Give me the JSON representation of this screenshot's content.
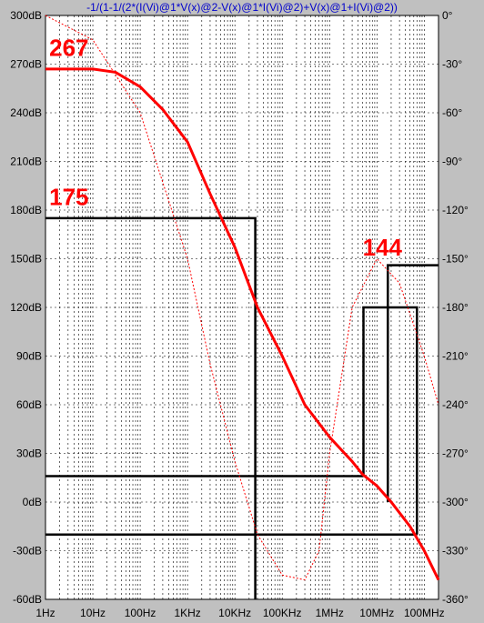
{
  "chart_data": {
    "type": "line",
    "title": "-1/(1-1/(2*(I(Vi)@1*V(x)@2-V(x)@1*I(Vi)@2)+V(x)@1+I(Vi)@2))",
    "x_scale": "log",
    "xlim": [
      1,
      200000000
    ],
    "xticks": [
      "1Hz",
      "10Hz",
      "100Hz",
      "1KHz",
      "10KHz",
      "100KHz",
      "1MHz",
      "10MHz",
      "100MHz"
    ],
    "left_axis": {
      "unit": "dB",
      "ylim": [
        -60,
        300
      ],
      "ticks": [
        "300dB",
        "270dB",
        "240dB",
        "210dB",
        "180dB",
        "150dB",
        "120dB",
        "90dB",
        "60dB",
        "30dB",
        "0dB",
        "-30dB",
        "-60dB"
      ]
    },
    "right_axis": {
      "unit": "deg",
      "ylim": [
        -360,
        0
      ],
      "ticks": [
        "0°",
        "-30°",
        "-60°",
        "-90°",
        "-120°",
        "-150°",
        "-180°",
        "-210°",
        "-240°",
        "-270°",
        "-300°",
        "-330°",
        "-360°"
      ]
    },
    "grid": true,
    "series": [
      {
        "axis": "left",
        "color": "#ff0000",
        "style": "solid",
        "x": [
          1,
          3,
          10,
          30,
          100,
          300,
          1000,
          3000,
          10000,
          30000,
          100000,
          300000,
          1000000,
          3000000,
          5000000,
          10000000,
          20000000,
          50000000,
          100000000,
          200000000
        ],
        "y": [
          267,
          267,
          267,
          265,
          256,
          242,
          222,
          190,
          157,
          120,
          90,
          60,
          40,
          25,
          17,
          10,
          0,
          -15,
          -30,
          -48
        ]
      },
      {
        "axis": "right",
        "color": "#ff0000",
        "style": "dotted",
        "x": [
          1,
          10,
          100,
          1000,
          3000,
          10000,
          30000,
          100000,
          300000,
          600000,
          1000000,
          3000000,
          10000000,
          30000000,
          100000000,
          200000000
        ],
        "y": [
          0,
          -15,
          -60,
          -150,
          -215,
          -275,
          -320,
          -345,
          -348,
          -330,
          -270,
          -180,
          -150,
          -165,
          -210,
          -240
        ]
      }
    ],
    "annotations": [
      {
        "text": "267",
        "x": 1.2,
        "y": 275,
        "axis": "left"
      },
      {
        "text": "175",
        "x": 1.2,
        "y": 183,
        "axis": "left"
      },
      {
        "text": "144",
        "x": 5000000,
        "y": 152,
        "axis": "left"
      }
    ],
    "marker_lines": [
      {
        "points": [
          [
            1,
            175
          ],
          [
            27000,
            175
          ],
          [
            27000,
            -60
          ]
        ]
      },
      {
        "points": [
          [
            1,
            16
          ],
          [
            5200000,
            16
          ]
        ]
      },
      {
        "points": [
          [
            1,
            -20
          ],
          [
            70000000,
            -20
          ]
        ]
      },
      {
        "points": [
          [
            5200000,
            16
          ],
          [
            5200000,
            120
          ],
          [
            70000000,
            120
          ],
          [
            70000000,
            -20
          ]
        ]
      },
      {
        "points": [
          [
            17000000,
            0
          ],
          [
            17000000,
            146
          ],
          [
            200000000,
            146
          ]
        ]
      }
    ]
  }
}
